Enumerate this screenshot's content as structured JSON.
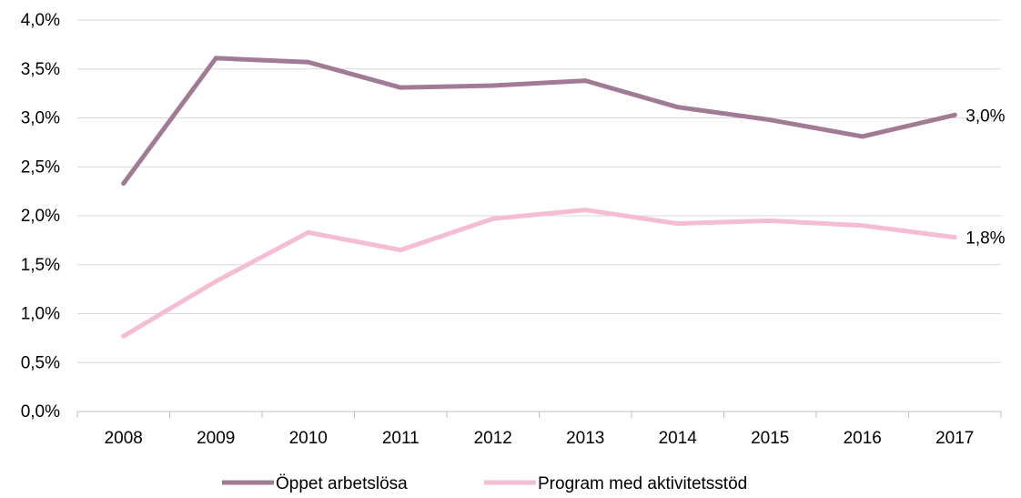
{
  "chart_data": {
    "type": "line",
    "categories": [
      "2008",
      "2009",
      "2010",
      "2011",
      "2012",
      "2013",
      "2014",
      "2015",
      "2016",
      "2017"
    ],
    "series": [
      {
        "name": "Öppet arbetslösa",
        "values": [
          2.33,
          3.61,
          3.57,
          3.31,
          3.33,
          3.38,
          3.11,
          2.98,
          2.81,
          3.03
        ],
        "color": "#a17a95",
        "end_label": "3,0%"
      },
      {
        "name": "Program med aktivitetsstöd",
        "values": [
          0.77,
          1.33,
          1.83,
          1.65,
          1.97,
          2.06,
          1.92,
          1.95,
          1.9,
          1.78
        ],
        "color": "#f5bdd4",
        "end_label": "1,8%"
      }
    ],
    "y_ticks": [
      "0,0%",
      "0,5%",
      "1,0%",
      "1,5%",
      "2,0%",
      "2,5%",
      "3,0%",
      "3,5%",
      "4,0%"
    ],
    "ylim": [
      0,
      4.0
    ],
    "grid": true,
    "gridline_color": "#d9d9d9",
    "legend_position": "bottom"
  }
}
